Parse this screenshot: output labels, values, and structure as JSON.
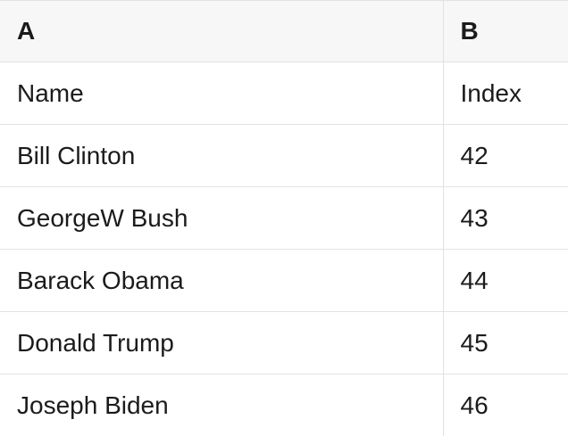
{
  "table": {
    "columns": [
      {
        "label": "A"
      },
      {
        "label": "B"
      }
    ],
    "rows": [
      {
        "cells": [
          "Name",
          "Index"
        ]
      },
      {
        "cells": [
          "Bill Clinton",
          "42"
        ]
      },
      {
        "cells": [
          "GeorgeW Bush",
          "43"
        ]
      },
      {
        "cells": [
          "Barack Obama",
          "44"
        ]
      },
      {
        "cells": [
          "Donald Trump",
          "45"
        ]
      },
      {
        "cells": [
          "Joseph Biden",
          "46"
        ]
      }
    ]
  },
  "colors": {
    "header_bg": "#f7f7f7",
    "border": "#e2e2e2",
    "text": "#1b1b1b",
    "row_bg": "#ffffff"
  }
}
